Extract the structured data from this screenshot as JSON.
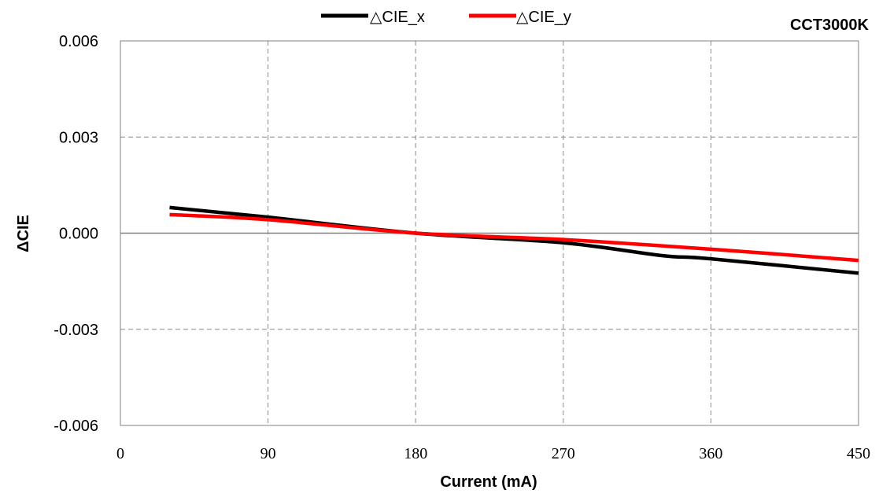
{
  "chart_data": {
    "type": "line",
    "title": "",
    "annotation": "CCT3000K",
    "xlabel": "Current (mA)",
    "ylabel": "ΔCIE",
    "xlim": [
      0,
      450
    ],
    "ylim": [
      -0.006,
      0.006
    ],
    "x_ticks": [
      "0",
      "90",
      "180",
      "270",
      "360",
      "450"
    ],
    "y_ticks": [
      "0.006",
      "0.003",
      "0.000",
      "-0.003",
      "-0.006"
    ],
    "grid": true,
    "legend_position": "top",
    "series": [
      {
        "name": "△CIE_x",
        "color": "#000000",
        "x": [
          30,
          90,
          180,
          270,
          330,
          360,
          450
        ],
        "y": [
          0.0008,
          0.0005,
          0.0,
          -0.0003,
          -0.0007,
          -0.0008,
          -0.00125
        ]
      },
      {
        "name": "△CIE_y",
        "color": "#ff0000",
        "x": [
          30,
          90,
          180,
          270,
          360,
          450
        ],
        "y": [
          0.00058,
          0.00042,
          0.0,
          -0.0002,
          -0.0005,
          -0.00085
        ]
      }
    ]
  }
}
